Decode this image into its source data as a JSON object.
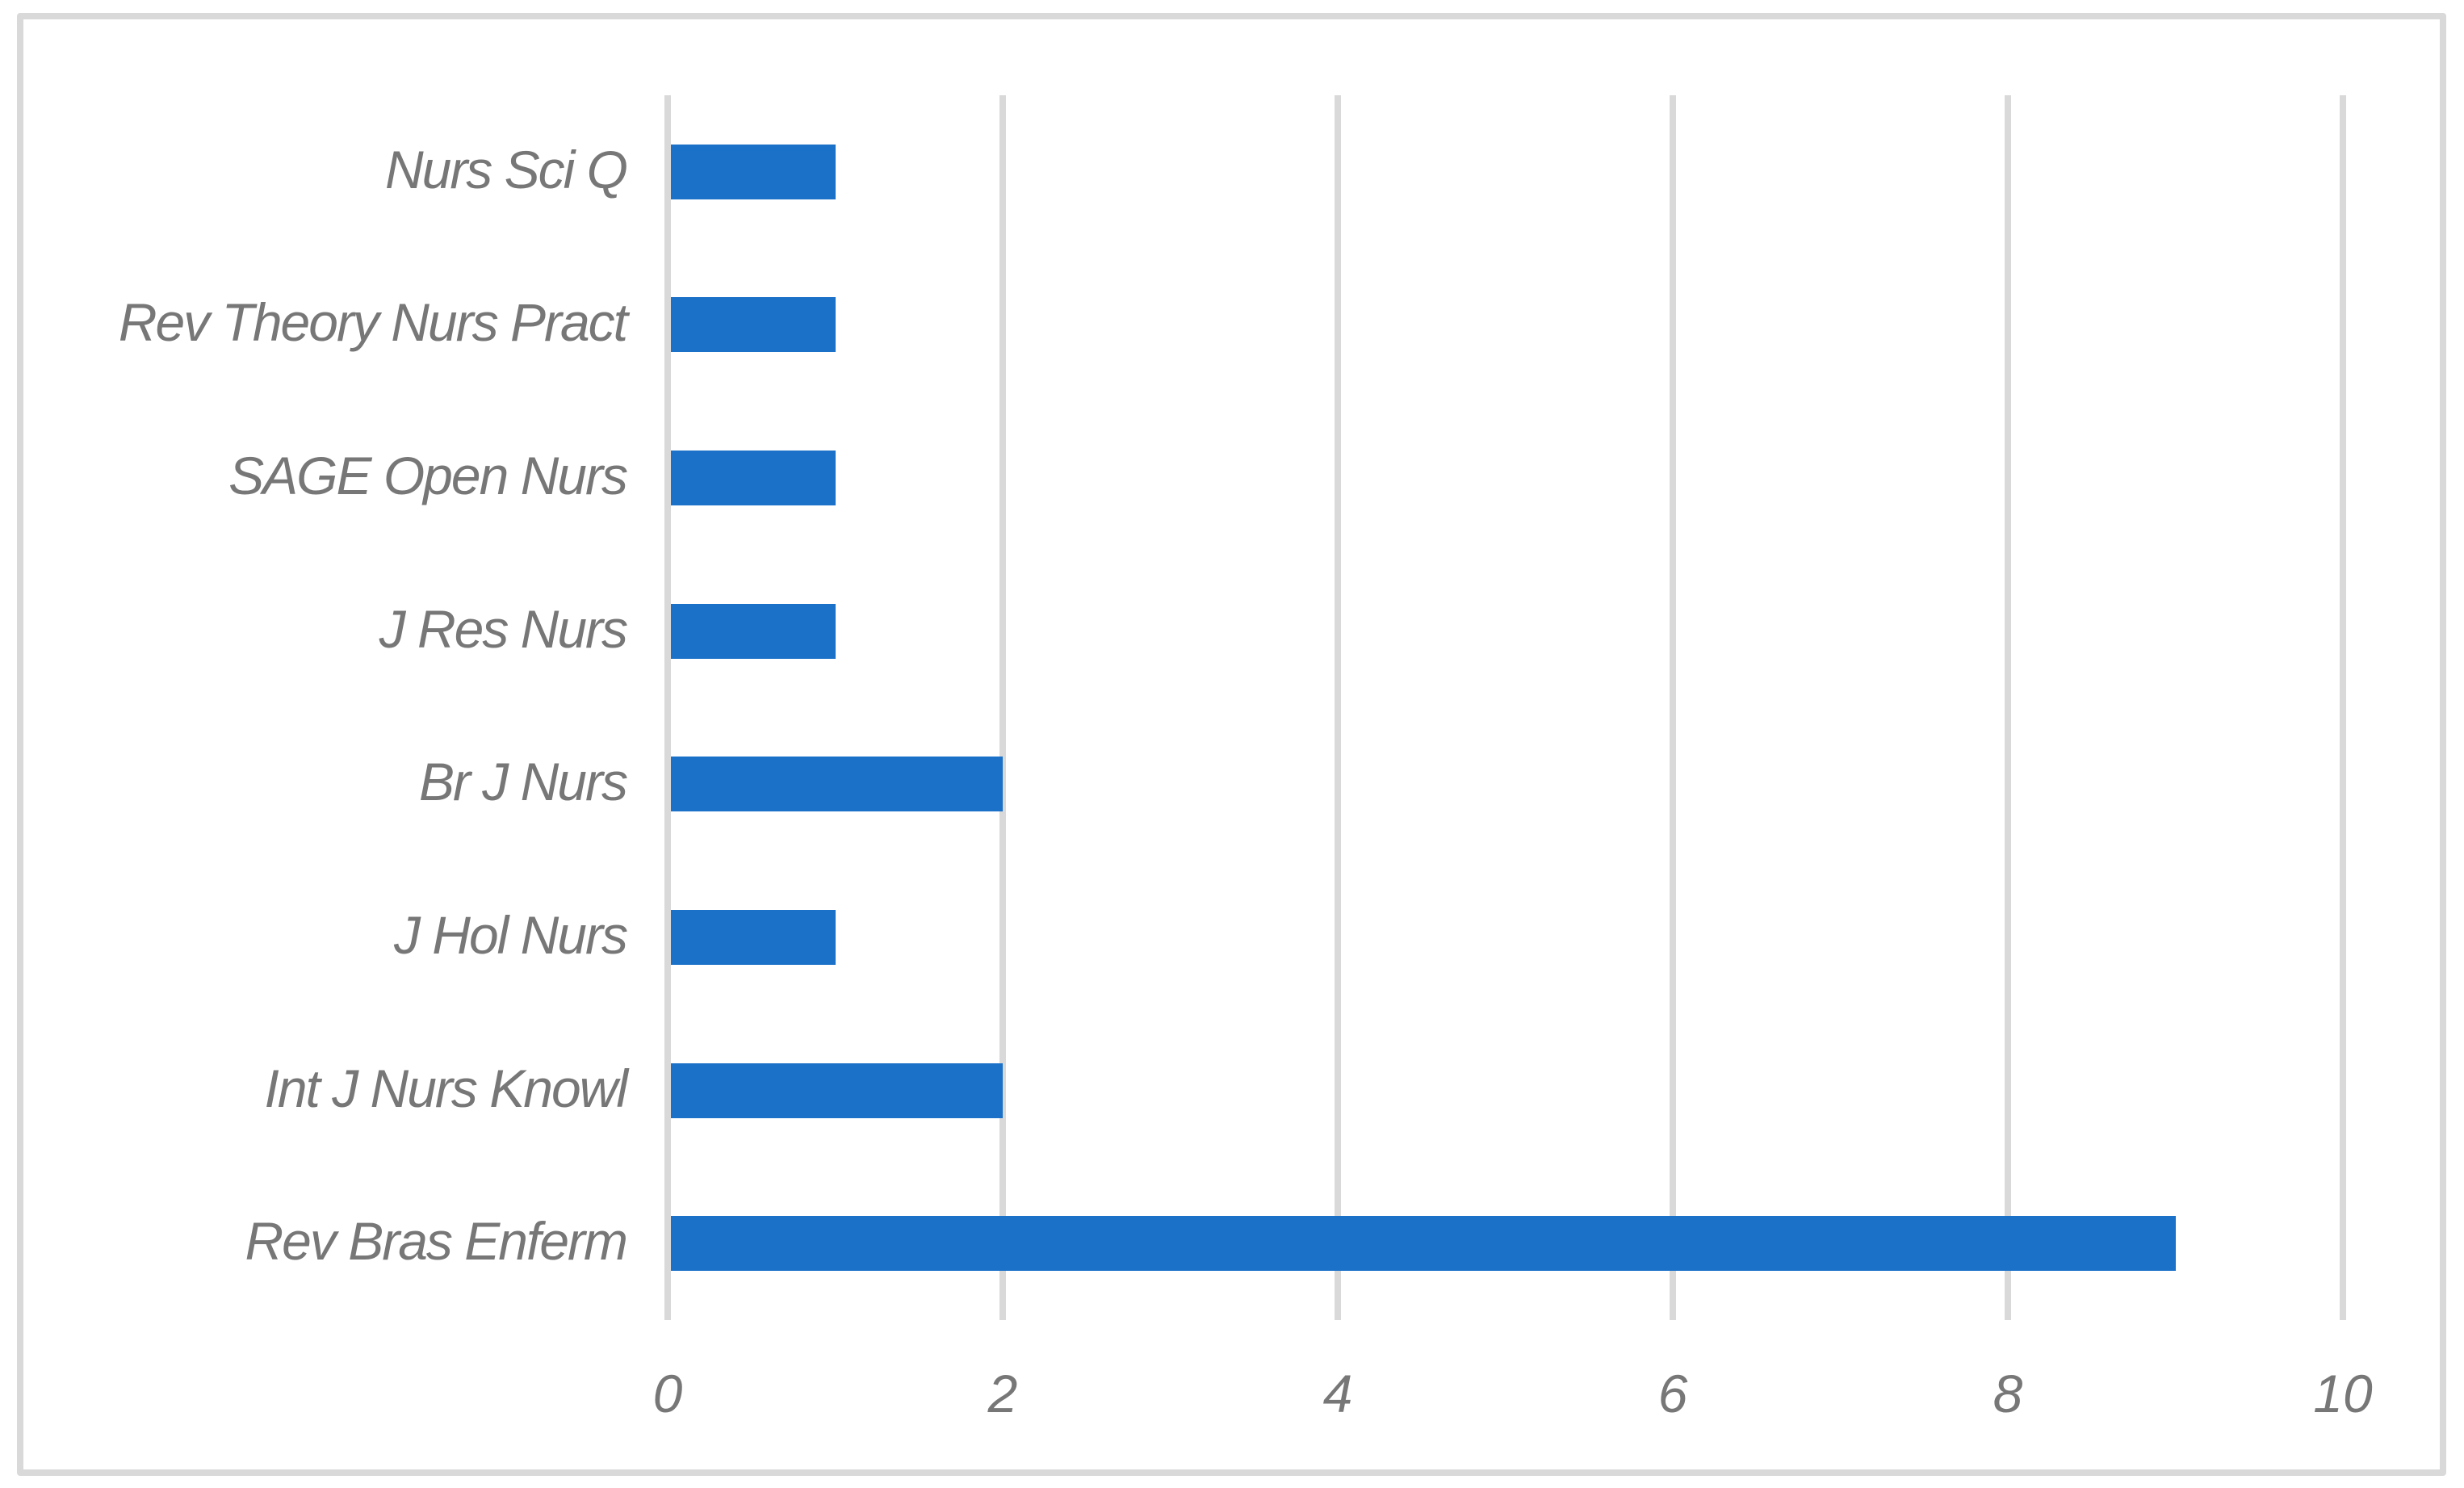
{
  "chart_data": {
    "type": "bar",
    "orientation": "horizontal",
    "title": "",
    "xlabel": "",
    "ylabel": "",
    "categories": [
      "Nurs Sci Q",
      "Rev Theory Nurs Pract",
      "SAGE Open Nurs",
      "J Res Nurs",
      "Br J Nurs",
      "J Hol Nurs",
      "Int J Nurs Knowl",
      "Rev Bras Enferm"
    ],
    "values": [
      1,
      1,
      1,
      1,
      2,
      1,
      2,
      9
    ],
    "xlim": [
      0,
      10
    ],
    "x_ticks": [
      "0",
      "2",
      "4",
      "6",
      "8",
      "10"
    ],
    "x_tick_values": [
      0,
      2,
      4,
      6,
      8,
      10
    ],
    "grid": true,
    "legend": false,
    "bar_color": "#1b70c7",
    "gridline_color": "#d9d9d9",
    "frame_color": "#d9d9d9",
    "label_color": "#777777"
  }
}
